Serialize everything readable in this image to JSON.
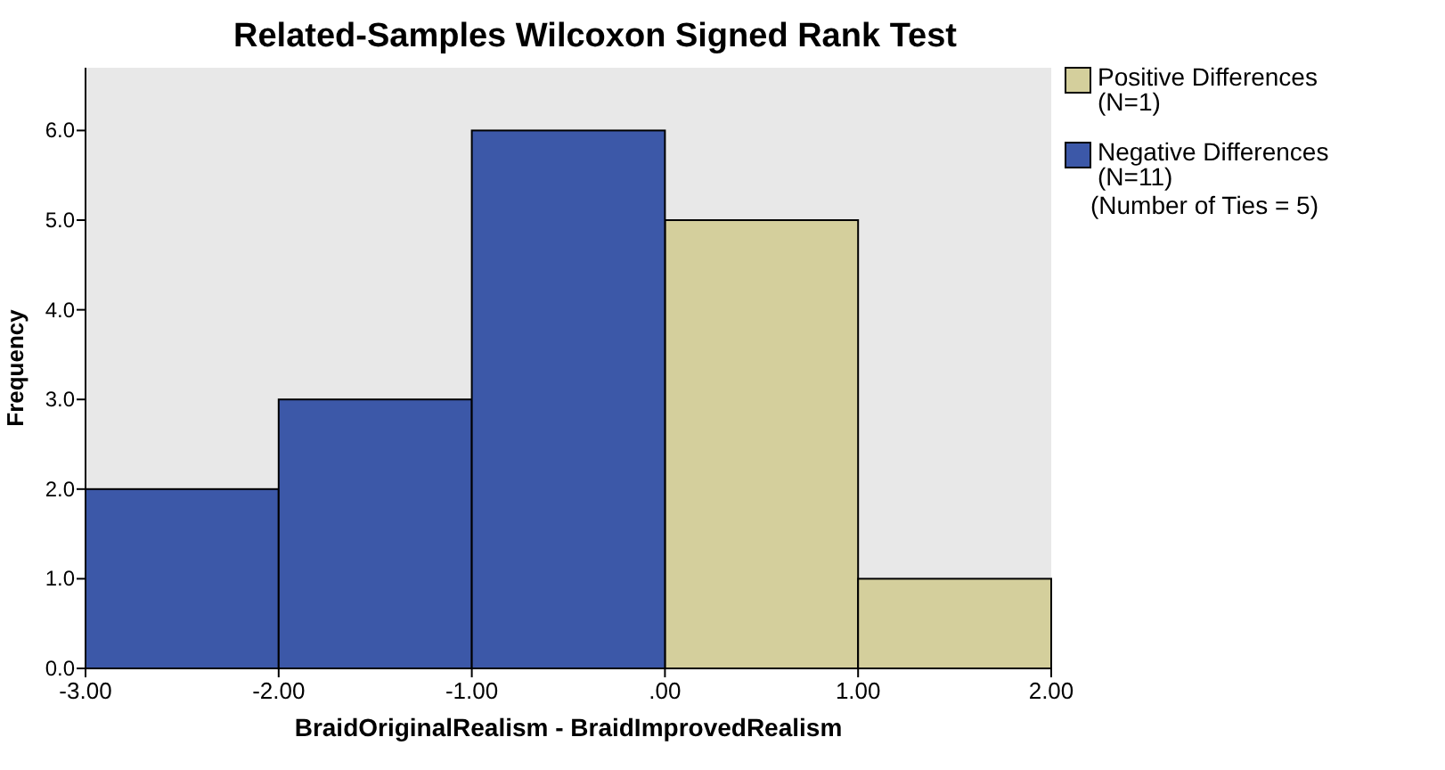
{
  "chart_data": {
    "type": "histogram",
    "title": "Related-Samples Wilcoxon Signed Rank Test",
    "xlabel": "BraidOriginalRealism - BraidImprovedRealism",
    "ylabel": "Frequency",
    "bins": [
      -3,
      -2,
      -1,
      0,
      1,
      2
    ],
    "series": [
      {
        "name": "Positive Differences (N=1)",
        "color": "#d4cf9c",
        "values": [
          null,
          null,
          null,
          5,
          1
        ]
      },
      {
        "name": "Negative Differences (N=11)",
        "color": "#3c58a8",
        "values": [
          2,
          3,
          6,
          null,
          null
        ]
      }
    ],
    "annotations": [
      "(Number of Ties = 5)"
    ],
    "xlim": [
      -3,
      2
    ],
    "xticks": [
      {
        "value": -3,
        "label": "-3.00"
      },
      {
        "value": -2,
        "label": "-2.00"
      },
      {
        "value": -1,
        "label": "-1.00"
      },
      {
        "value": 0,
        "label": ".00"
      },
      {
        "value": 1,
        "label": "1.00"
      },
      {
        "value": 2,
        "label": "2.00"
      }
    ],
    "ylim": [
      0,
      6.7
    ],
    "yticks": [
      {
        "value": 0,
        "label": "0.0"
      },
      {
        "value": 1,
        "label": "1.0"
      },
      {
        "value": 2,
        "label": "2.0"
      },
      {
        "value": 3,
        "label": "3.0"
      },
      {
        "value": 4,
        "label": "4.0"
      },
      {
        "value": 5,
        "label": "5.0"
      },
      {
        "value": 6,
        "label": "6.0"
      }
    ],
    "grid": false,
    "legend": "top right"
  }
}
